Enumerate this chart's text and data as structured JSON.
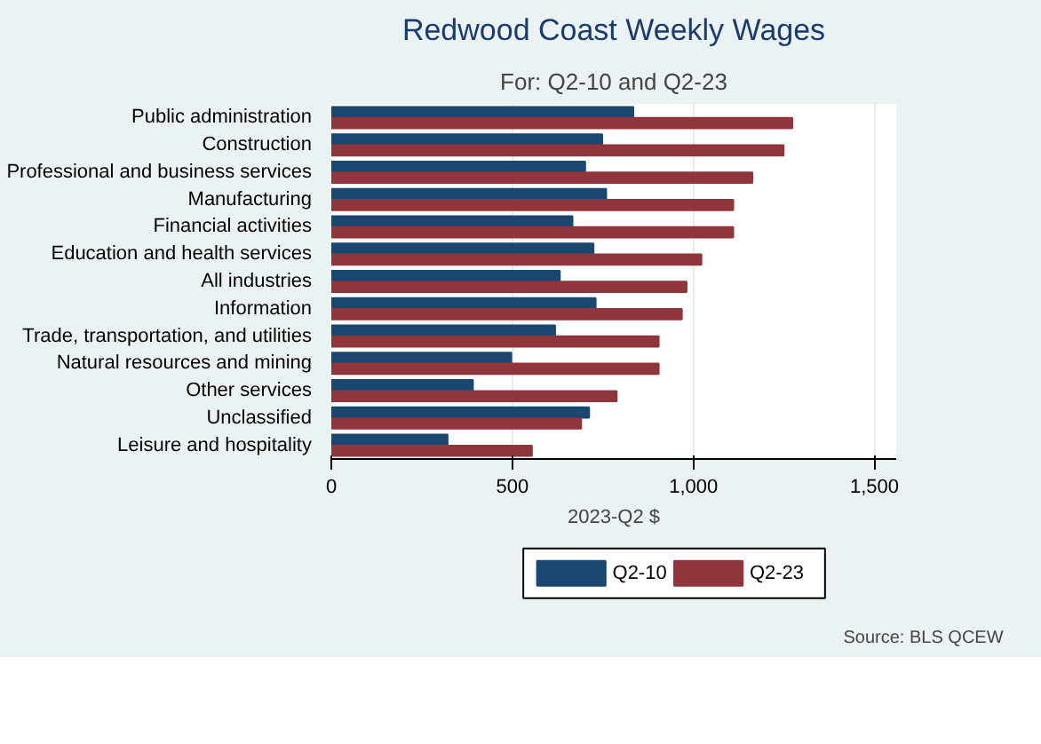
{
  "chart_data": {
    "type": "bar",
    "orientation": "horizontal",
    "title": "Redwood Coast Weekly Wages",
    "subtitle": "For: Q2-10 and Q2-23",
    "xlabel": "2023-Q2 $",
    "categories": [
      "Public administration",
      "Construction",
      "Professional and business services",
      "Manufacturing",
      "Financial activities",
      "Education and health services",
      "All industries",
      "Information",
      "Trade, transportation, and utilities",
      "Natural resources and mining",
      "Other services",
      "Unclassified",
      "Leisure and hospitality"
    ],
    "series": [
      {
        "name": "Q2-10",
        "color": "#1a476f",
        "values": [
          834,
          748,
          701,
          759,
          666,
          724,
          631,
          730,
          618,
          497,
          391,
          712,
          321
        ]
      },
      {
        "name": "Q2-23",
        "color": "#90353b",
        "values": [
          1273,
          1249,
          1163,
          1110,
          1110,
          1022,
          981,
          968,
          904,
          904,
          788,
          690,
          554
        ]
      }
    ],
    "xlim": [
      0,
      1560
    ],
    "xticks": [
      0,
      500,
      {
        "value": 1000,
        "label": "1,000"
      },
      {
        "value": 1500,
        "label": "1,500"
      }
    ],
    "grid": "x",
    "legend": "bottom",
    "annotations": [
      "Source: BLS QCEW"
    ]
  }
}
